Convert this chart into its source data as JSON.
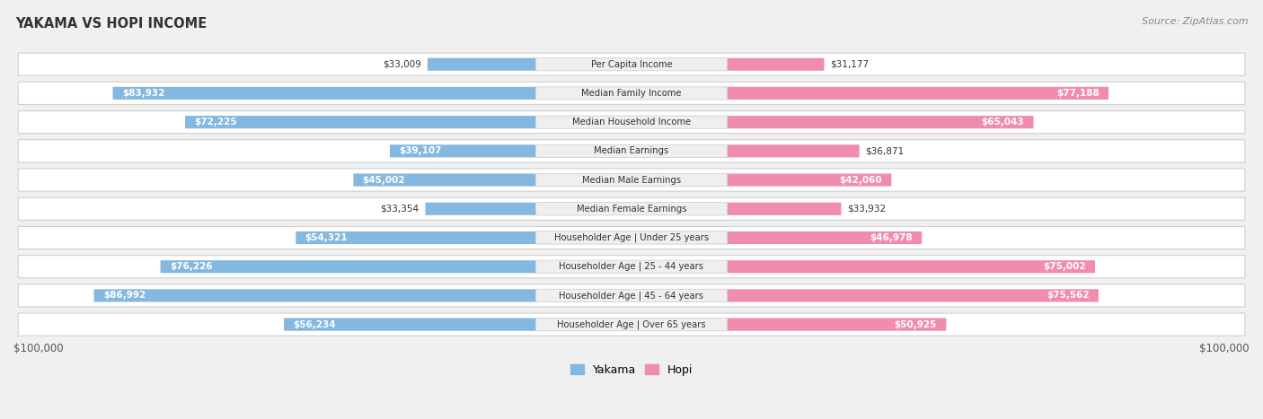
{
  "title": "YAKAMA VS HOPI INCOME",
  "source": "Source: ZipAtlas.com",
  "categories": [
    "Per Capita Income",
    "Median Family Income",
    "Median Household Income",
    "Median Earnings",
    "Median Male Earnings",
    "Median Female Earnings",
    "Householder Age | Under 25 years",
    "Householder Age | 25 - 44 years",
    "Householder Age | 45 - 64 years",
    "Householder Age | Over 65 years"
  ],
  "yakama_values": [
    33009,
    83932,
    72225,
    39107,
    45002,
    33354,
    54321,
    76226,
    86992,
    56234
  ],
  "hopi_values": [
    31177,
    77188,
    65043,
    36871,
    42060,
    33932,
    46978,
    75002,
    75562,
    50925
  ],
  "yakama_color": "#85b8e0",
  "hopi_color": "#f08cb0",
  "max_value": 100000,
  "bg_color": "#f0f0f0",
  "row_bg_color": "#ffffff",
  "row_edge_color": "#d0d0d0",
  "label_bg_color": "#efefef",
  "label_edge_color": "#d0d0d0",
  "axis_label_color": "#555555",
  "title_color": "#333333",
  "value_color_dark": "#333333",
  "value_color_light": "#ffffff",
  "legend_yakama": "Yakama",
  "legend_hopi": "Hopi",
  "xlabel_left": "$100,000",
  "xlabel_right": "$100,000",
  "inside_threshold": 0.38
}
